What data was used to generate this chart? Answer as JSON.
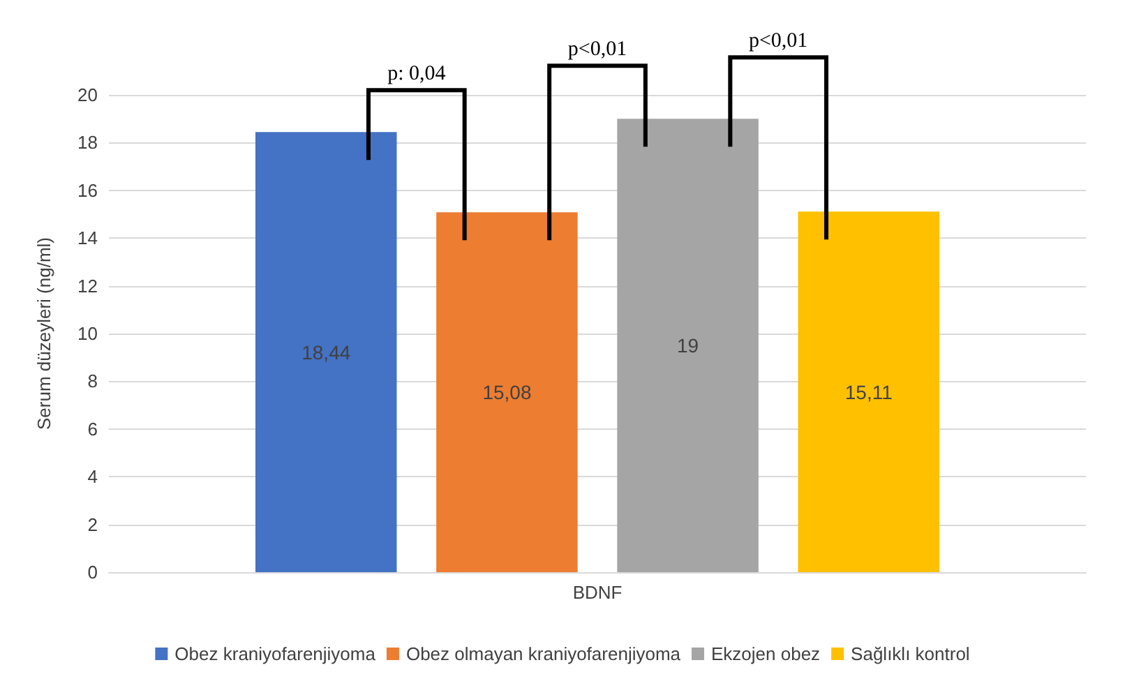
{
  "chart_data": {
    "type": "bar",
    "categories": [
      "BDNF"
    ],
    "ylabel": "Serum düzeyleri (ng/ml)",
    "ylim": [
      0,
      20
    ],
    "yticks": [
      0,
      2,
      4,
      6,
      8,
      10,
      12,
      14,
      16,
      18,
      20
    ],
    "grid": "y",
    "legend": "bottom",
    "series": [
      {
        "name": "Obez kraniyofarenjiyoma",
        "color": "#4472c4",
        "values": [
          18.44
        ],
        "value_labels": [
          "18,44"
        ]
      },
      {
        "name": "Obez olmayan kraniyofarenjiyoma",
        "color": "#ed7d31",
        "values": [
          15.08
        ],
        "value_labels": [
          "15,08"
        ]
      },
      {
        "name": "Ekzojen obez",
        "color": "#a5a5a5",
        "values": [
          19
        ],
        "value_labels": [
          "19"
        ]
      },
      {
        "name": "Sağlıklı kontrol",
        "color": "#ffc000",
        "values": [
          15.11
        ],
        "value_labels": [
          "15,11"
        ]
      }
    ],
    "annotations": [
      "p: 0,04",
      "p<0,01",
      "p<0,01"
    ]
  }
}
